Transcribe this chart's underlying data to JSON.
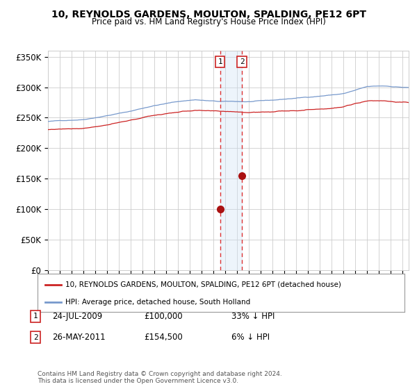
{
  "title": "10, REYNOLDS GARDENS, MOULTON, SPALDING, PE12 6PT",
  "subtitle": "Price paid vs. HM Land Registry's House Price Index (HPI)",
  "ylim": [
    0,
    360000
  ],
  "hpi_color": "#7799cc",
  "price_color": "#cc2222",
  "marker_color": "#aa1111",
  "vline_color": "#dd3333",
  "vspan_color": "#cce0f5",
  "grid_color": "#cccccc",
  "sale1_date": 2009.56,
  "sale1_price": 100000,
  "sale1_label": "1",
  "sale2_date": 2011.4,
  "sale2_price": 154500,
  "sale2_label": "2",
  "legend_property": "10, REYNOLDS GARDENS, MOULTON, SPALDING, PE12 6PT (detached house)",
  "legend_hpi": "HPI: Average price, detached house, South Holland",
  "footer": "Contains HM Land Registry data © Crown copyright and database right 2024.\nThis data is licensed under the Open Government Licence v3.0.",
  "xstart": 1995.0,
  "xend": 2025.5
}
